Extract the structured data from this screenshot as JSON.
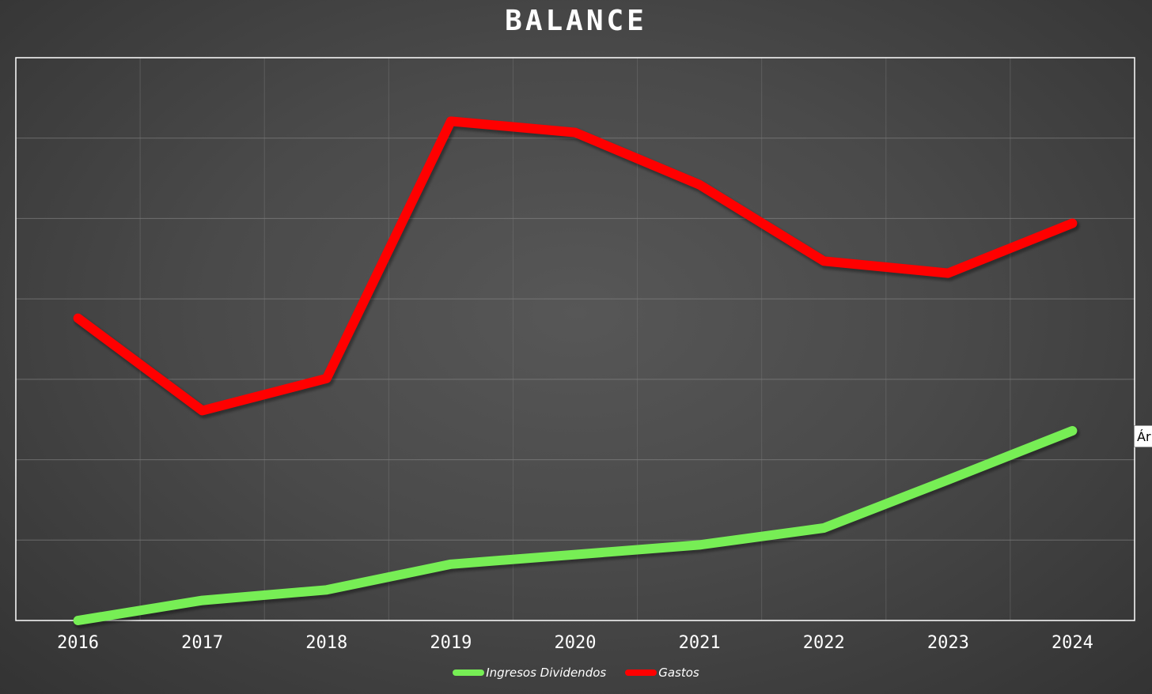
{
  "chart_data": {
    "type": "line",
    "title": "BALANCE",
    "categories": [
      "2016",
      "2017",
      "2018",
      "2019",
      "2020",
      "2021",
      "2022",
      "2023",
      "2024"
    ],
    "ylim": [
      0,
      7
    ],
    "grid": true,
    "legend_position": "bottom",
    "series": [
      {
        "name": "Ingresos Dividendos",
        "color": "#77ee55",
        "values": [
          0.0,
          0.25,
          0.38,
          0.7,
          0.82,
          0.94,
          1.15,
          1.75,
          2.36
        ]
      },
      {
        "name": "Gastos",
        "color": "#ff0000",
        "values": [
          3.76,
          2.61,
          3.01,
          6.21,
          6.07,
          5.42,
          4.47,
          4.32,
          4.94
        ]
      }
    ]
  },
  "tooltip": {
    "text": "Ár"
  }
}
